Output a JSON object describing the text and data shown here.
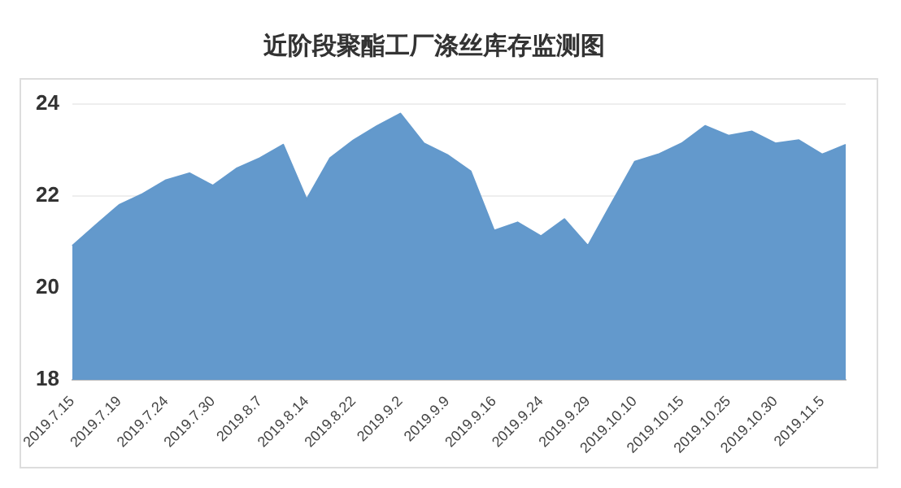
{
  "chart_data": {
    "type": "area",
    "title": "近阶段聚酯工厂涤丝库存监测图",
    "categories": [
      "2019.7.15",
      null,
      "2019.7.19",
      null,
      "2019.7.24",
      null,
      "2019.7.30",
      null,
      "2019.8.7",
      null,
      "2019.8.14",
      null,
      "2019.8.22",
      null,
      "2019.9.2",
      null,
      "2019.9.9",
      null,
      "2019.9.16",
      null,
      "2019.9.24",
      null,
      "2019.9.29",
      null,
      "2019.10.10",
      null,
      "2019.10.15",
      null,
      "2019.10.25",
      null,
      "2019.10.30",
      null,
      "2019.11.5",
      null
    ],
    "series": [
      {
        "color": "#6399cc",
        "values": [
          20.92,
          21.37,
          21.81,
          22.05,
          22.35,
          22.5,
          22.23,
          22.6,
          22.83,
          23.12,
          21.93,
          22.83,
          23.22,
          23.53,
          23.8,
          23.15,
          22.9,
          22.54,
          21.25,
          21.43,
          21.13,
          21.5,
          20.92,
          21.84,
          22.75,
          22.91,
          23.15,
          23.53,
          23.32,
          23.41,
          23.15,
          23.22,
          22.91,
          23.12
        ]
      }
    ],
    "ylim": [
      18,
      24.5
    ],
    "yticks": [
      18,
      20,
      22,
      24
    ],
    "grid": "y"
  }
}
